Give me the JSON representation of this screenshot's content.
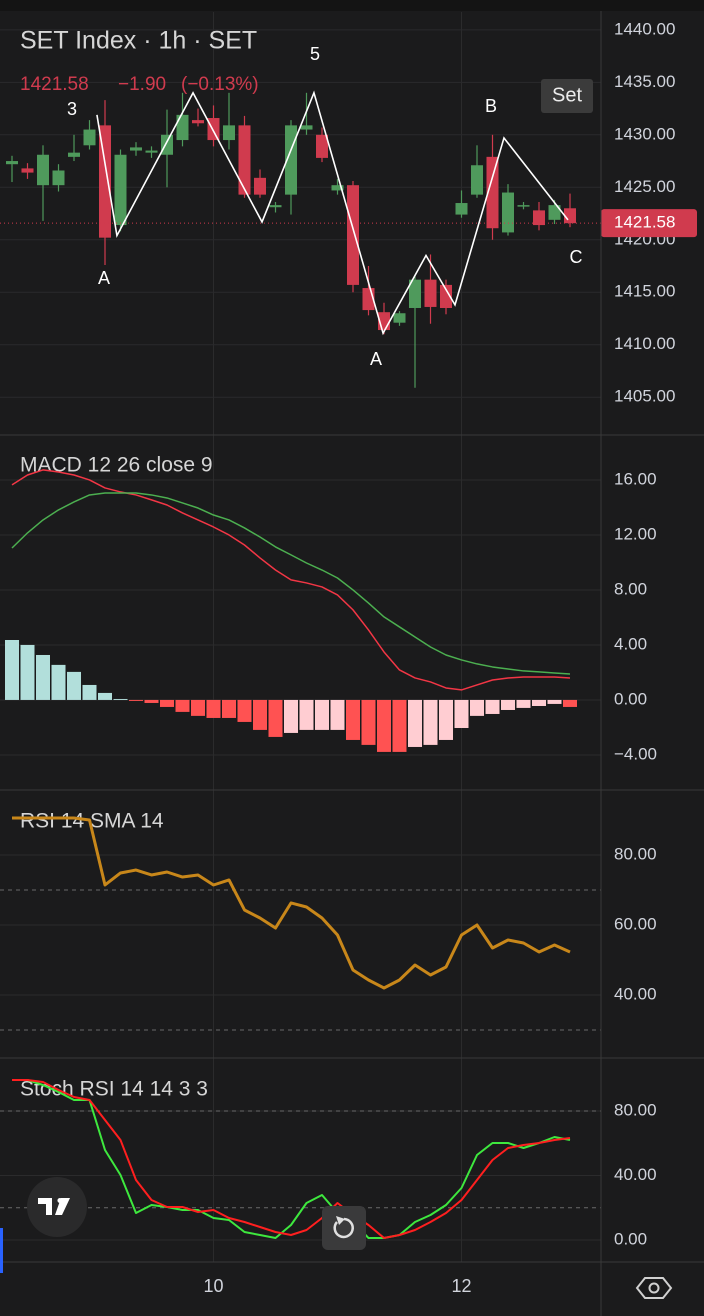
{
  "toolbar": {
    "button": "Set"
  },
  "chart_data": [
    {
      "type": "candlestick",
      "title": "SET Index · 1h · SET",
      "change": "−1.90",
      "change_pct": "(−0.13%)",
      "categories": [
        null,
        null,
        null,
        null,
        null,
        null,
        null,
        null,
        null,
        null,
        null,
        null,
        null,
        "10",
        null,
        null,
        null,
        null,
        null,
        null,
        null,
        null,
        null,
        null,
        null,
        null,
        null,
        null,
        null,
        "12",
        null,
        null,
        null,
        null,
        null,
        null,
        null
      ],
      "open": [
        1427.2,
        1426.8,
        1425.2,
        1425.2,
        1427.9,
        1429.0,
        1430.9,
        1421.4,
        1428.5,
        1428.3,
        1428.1,
        1429.5,
        1431.4,
        1431.6,
        1429.5,
        1430.9,
        1425.9,
        1423.1,
        1424.3,
        1430.5,
        1430.0,
        1424.7,
        1425.2,
        1415.4,
        1413.1,
        1412.1,
        1413.5,
        1416.2,
        1415.7,
        1422.4,
        1424.3,
        1427.9,
        1420.7,
        1423.2,
        1422.8,
        1421.9,
        1423.0
      ],
      "high": [
        1428.0,
        1427.3,
        1429.0,
        1427.2,
        1430.0,
        1431.4,
        1433.3,
        1428.6,
        1429.3,
        1428.9,
        1432.4,
        1434.0,
        1432.5,
        1432.8,
        1434.0,
        1431.8,
        1426.7,
        1423.6,
        1431.4,
        1434.0,
        1430.7,
        1425.8,
        1425.6,
        1417.5,
        1414.0,
        1413.2,
        1416.5,
        1418.6,
        1416.2,
        1424.7,
        1429.0,
        1430.0,
        1425.3,
        1423.6,
        1423.6,
        1423.8,
        1424.4
      ],
      "low": [
        1425.5,
        1425.8,
        1421.8,
        1424.6,
        1427.5,
        1428.6,
        1417.6,
        1420.8,
        1428.0,
        1427.8,
        1425.0,
        1428.9,
        1430.8,
        1428.9,
        1428.6,
        1424.0,
        1424.0,
        1422.6,
        1422.4,
        1430.0,
        1427.4,
        1424.3,
        1415.0,
        1412.8,
        1411.0,
        1411.8,
        1405.9,
        1412.0,
        1412.9,
        1422.1,
        1424.0,
        1420.0,
        1420.4,
        1422.9,
        1420.9,
        1421.5,
        1421.2
      ],
      "close": [
        1427.5,
        1426.4,
        1428.1,
        1426.6,
        1428.3,
        1430.5,
        1420.2,
        1428.1,
        1428.8,
        1428.5,
        1430.0,
        1431.9,
        1431.1,
        1429.5,
        1430.9,
        1424.3,
        1424.3,
        1423.3,
        1430.9,
        1430.9,
        1427.8,
        1425.2,
        1415.7,
        1413.3,
        1411.4,
        1413.0,
        1416.2,
        1413.6,
        1413.5,
        1423.5,
        1427.1,
        1421.1,
        1424.5,
        1423.3,
        1421.4,
        1423.3,
        1421.58
      ],
      "up_color": "#4f9a5c",
      "down_color": "#d03b4e",
      "drawing": {
        "x": [
          5.48,
          6.77,
          11.68,
          16.13,
          19.48,
          23.94,
          26.71,
          28.58,
          31.74,
          35.87
        ],
        "y": [
          1431.9,
          1420.4,
          1434.0,
          1421.7,
          1434.0,
          1411.1,
          1418.5,
          1413.8,
          1429.7,
          1421.9
        ],
        "color": "#ffffff"
      },
      "annotations": [
        "3",
        "5",
        "A",
        "A",
        "B",
        "C"
      ],
      "ylim": [
        1401.4,
        1441.7
      ],
      "yticks": [
        {
          "value": 1440,
          "label": "1440.00"
        },
        {
          "value": 1435,
          "label": "1435.00"
        },
        {
          "value": 1430,
          "label": "1430.00"
        },
        {
          "value": 1425,
          "label": "1425.00"
        },
        {
          "value": 1420,
          "label": "1420.00"
        },
        {
          "value": 1415,
          "label": "1415.00"
        },
        {
          "value": 1410,
          "label": "1410.00"
        },
        {
          "value": 1405,
          "label": "1405.00"
        }
      ],
      "grid": true
    },
    {
      "type": "combo",
      "title": "MACD 12 26 close 9",
      "histogram": {
        "values": [
          4.36,
          4.0,
          3.27,
          2.55,
          2.04,
          1.09,
          0.51,
          0.07,
          -0.07,
          -0.22,
          -0.51,
          -0.87,
          -1.16,
          -1.31,
          -1.31,
          -1.6,
          -2.18,
          -2.69,
          -2.4,
          -2.18,
          -2.18,
          -2.18,
          -2.91,
          -3.27,
          -3.78,
          -3.78,
          -3.42,
          -3.27,
          -2.91,
          -2.04,
          -1.16,
          -1.02,
          -0.73,
          -0.58,
          -0.44,
          -0.29,
          -0.51
        ],
        "colors": [
          "#b2dfdb",
          "#b2dfdb",
          "#b2dfdb",
          "#b2dfdb",
          "#b2dfdb",
          "#b2dfdb",
          "#b2dfdb",
          "#b2dfdb",
          "#ff5252",
          "#ff5252",
          "#ff5252",
          "#ff5252",
          "#ff5252",
          "#ff5252",
          "#ff5252",
          "#ff5252",
          "#ff5252",
          "#ff5252",
          "#ffcdd2",
          "#ffcdd2",
          "#ffcdd2",
          "#ffcdd2",
          "#ff5252",
          "#ff5252",
          "#ff5252",
          "#ff5252",
          "#ffcdd2",
          "#ffcdd2",
          "#ffcdd2",
          "#ffcdd2",
          "#ffcdd2",
          "#ffcdd2",
          "#ffcdd2",
          "#ffcdd2",
          "#ffcdd2",
          "#ffcdd2",
          "#ff5252"
        ]
      },
      "series": [
        {
          "color": "#f23645",
          "values": [
            15.64,
            16.36,
            16.73,
            16.58,
            16.36,
            16.0,
            15.42,
            15.13,
            14.91,
            14.55,
            14.18,
            13.6,
            13.09,
            12.58,
            12.0,
            11.27,
            10.33,
            9.45,
            8.73,
            8.51,
            8.22,
            7.64,
            6.55,
            5.09,
            3.49,
            2.18,
            1.6,
            1.31,
            0.87,
            0.73,
            1.09,
            1.45,
            1.6,
            1.67,
            1.67,
            1.67,
            1.6
          ]
        },
        {
          "color": "#4caf50",
          "values": [
            11.05,
            12.15,
            13.09,
            13.82,
            14.4,
            14.91,
            15.05,
            15.05,
            15.05,
            14.91,
            14.69,
            14.33,
            13.96,
            13.45,
            13.09,
            12.51,
            11.85,
            11.13,
            10.55,
            9.96,
            9.45,
            8.87,
            8.0,
            7.05,
            6.04,
            5.31,
            4.58,
            3.85,
            3.27,
            2.91,
            2.62,
            2.4,
            2.25,
            2.11,
            2.04,
            1.96,
            1.89
          ]
        }
      ],
      "ylim": [
        -6.55,
        19.27
      ],
      "yticks": [
        {
          "value": 16,
          "label": "16.00"
        },
        {
          "value": 12,
          "label": "12.00"
        },
        {
          "value": 8,
          "label": "8.00"
        },
        {
          "value": 4,
          "label": "4.00"
        },
        {
          "value": 0,
          "label": "0.00"
        },
        {
          "value": -4,
          "label": "−4.00"
        }
      ],
      "grid": true
    },
    {
      "type": "line",
      "title": "RSI 14 SMA 14",
      "series": [
        {
          "color": "#c8871a",
          "values": [
            90.57,
            90.57,
            90.57,
            90.57,
            90.57,
            90.0,
            71.43,
            74.86,
            75.71,
            74.29,
            75.14,
            73.71,
            74.29,
            71.43,
            72.86,
            64.29,
            62.0,
            59.14,
            66.29,
            65.14,
            62.0,
            57.14,
            47.14,
            44.29,
            42.0,
            44.29,
            48.57,
            45.71,
            48.0,
            57.14,
            60.0,
            53.43,
            55.71,
            54.86,
            52.29,
            54.29,
            52.29
          ]
        }
      ],
      "hlines": [
        70,
        30
      ],
      "ylim": [
        22,
        98.57
      ],
      "yticks": [
        {
          "value": 80,
          "label": "80.00"
        },
        {
          "value": 60,
          "label": "60.00"
        },
        {
          "value": 40,
          "label": "40.00"
        }
      ],
      "grid": true
    },
    {
      "type": "line",
      "title": "Stoch RSI 14 14 3 3",
      "series": [
        {
          "color": "#3ee83e",
          "values": [
            99.22,
            99.22,
            96.12,
            91.78,
            86.82,
            86.82,
            55.81,
            40.31,
            16.74,
            21.71,
            20.47,
            18.6,
            18.6,
            13.64,
            12.4,
            4.96,
            3.1,
            1.24,
            9.3,
            22.95,
            27.91,
            16.74,
            11.16,
            1.24,
            1.24,
            3.1,
            11.16,
            15.5,
            21.71,
            32.25,
            52.71,
            60.16,
            60.16,
            57.05,
            60.16,
            63.88,
            62.02
          ]
        },
        {
          "color": "#ff1f1f",
          "values": [
            99.22,
            99.22,
            97.98,
            93.02,
            88.68,
            86.82,
            74.42,
            62.02,
            37.21,
            24.81,
            20.47,
            20.47,
            17.36,
            18.6,
            13.64,
            11.16,
            8.06,
            4.96,
            3.1,
            6.2,
            13.64,
            22.95,
            15.5,
            9.3,
            1.24,
            3.1,
            6.2,
            11.16,
            16.74,
            24.81,
            37.21,
            49.61,
            57.05,
            58.91,
            60.16,
            62.02,
            63.26
          ]
        }
      ],
      "hlines": [
        80,
        20
      ],
      "ylim": [
        -13.64,
        112.87
      ],
      "yticks": [
        {
          "value": 80,
          "label": "80.00"
        },
        {
          "value": 40,
          "label": "40.00"
        },
        {
          "value": 0,
          "label": "0.00"
        }
      ],
      "grid": true
    }
  ]
}
